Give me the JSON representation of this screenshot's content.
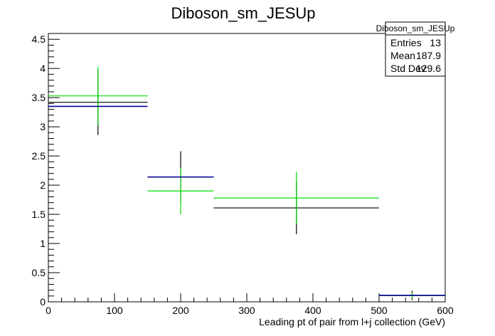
{
  "chart_data": {
    "type": "histogram",
    "title": "Diboson_sm_JESUp",
    "xlabel": "Leading pt of pair from l+j collection (GeV)",
    "ylabel": "",
    "xlim": [
      0,
      600
    ],
    "ylim": [
      0,
      4.6
    ],
    "x_ticks": [
      0,
      100,
      200,
      300,
      400,
      500,
      600
    ],
    "y_ticks": [
      0,
      0.5,
      1,
      1.5,
      2,
      2.5,
      3,
      3.5,
      4,
      4.5
    ],
    "x_tick_labels": [
      "0",
      "100",
      "200",
      "300",
      "400",
      "500",
      "600"
    ],
    "y_tick_labels": [
      "0",
      "0.5",
      "1",
      "1.5",
      "2",
      "2.5",
      "3",
      "3.5",
      "4",
      "4.5"
    ],
    "series": [
      {
        "color": "#000000",
        "points": [
          {
            "x_low": 0,
            "x_high": 150,
            "y": 3.42,
            "y_err": 0.56
          },
          {
            "x_low": 150,
            "x_high": 250,
            "y": 2.14,
            "y_err": 0.44
          },
          {
            "x_low": 250,
            "x_high": 500,
            "y": 1.61,
            "y_err": 0.45
          },
          {
            "x_low": 500,
            "x_high": 600,
            "y": 0.11,
            "y_err": 0.08
          }
        ]
      },
      {
        "color": "#00dd00",
        "points": [
          {
            "x_low": 0,
            "x_high": 150,
            "y": 3.53,
            "y_err": 0.5
          },
          {
            "x_low": 150,
            "x_high": 250,
            "y": 1.9,
            "y_err": 0.4
          },
          {
            "x_low": 250,
            "x_high": 500,
            "y": 1.78,
            "y_err": 0.45
          },
          {
            "x_low": 500,
            "x_high": 600,
            "y": 0.11,
            "y_err": 0.05
          }
        ]
      },
      {
        "color": "#000099",
        "points": [
          {
            "x_low": 0,
            "x_high": 150,
            "y": 3.35,
            "y_err": 0
          },
          {
            "x_low": 150,
            "x_high": 250,
            "y": 2.14,
            "y_err": 0
          },
          {
            "x_low": 500,
            "x_high": 600,
            "y": 0.11,
            "y_err": 0
          }
        ]
      }
    ],
    "stats": {
      "title": "Diboson_sm_JESUp",
      "rows": [
        {
          "label": "Entries",
          "value": "13"
        },
        {
          "label": "Mean",
          "value": "187.9"
        },
        {
          "label": "Std Dev",
          "value": "129.6"
        }
      ]
    }
  }
}
